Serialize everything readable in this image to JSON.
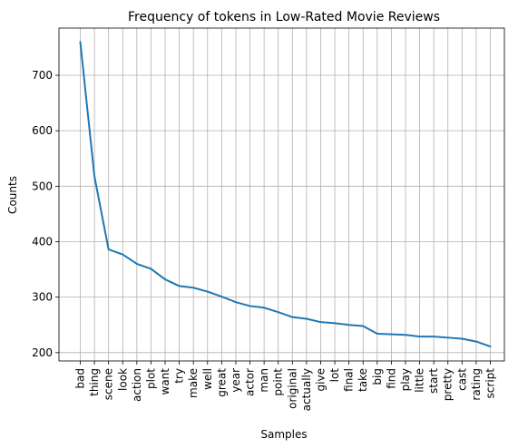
{
  "chart_data": {
    "type": "line",
    "title": "Frequency of tokens in Low-Rated Movie Reviews",
    "xlabel": "Samples",
    "ylabel": "Counts",
    "categories": [
      "bad",
      "thing",
      "scene",
      "look",
      "action",
      "plot",
      "want",
      "try",
      "make",
      "well",
      "great",
      "year",
      "actor",
      "man",
      "point",
      "original",
      "actually",
      "give",
      "lot",
      "final",
      "take",
      "big",
      "find",
      "play",
      "little",
      "start",
      "pretty",
      "cast",
      "rating",
      "script"
    ],
    "values": [
      760,
      518,
      386,
      377,
      360,
      351,
      332,
      320,
      317,
      310,
      301,
      291,
      284,
      281,
      273,
      264,
      261,
      255,
      253,
      250,
      248,
      234,
      233,
      232,
      229,
      229,
      227,
      225,
      220,
      211
    ],
    "ylim": [
      185,
      785
    ],
    "yticks": [
      200,
      300,
      400,
      500,
      600,
      700
    ],
    "grid": true,
    "line_color": "#1f77b4"
  }
}
